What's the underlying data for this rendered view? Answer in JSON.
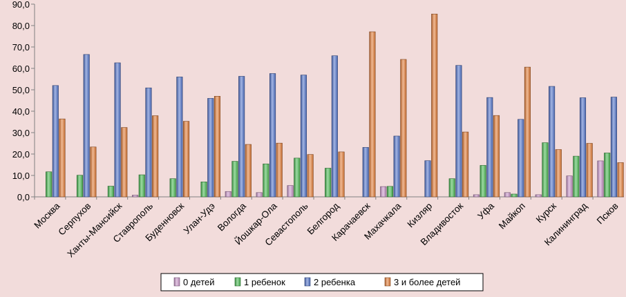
{
  "chart_data": {
    "type": "bar",
    "title": "",
    "xlabel": "",
    "ylabel": "",
    "ylim": [
      0,
      90
    ],
    "ytick_step": 10,
    "ytick_labels": [
      "0,0",
      "10,0",
      "20,0",
      "30,0",
      "40,0",
      "50,0",
      "60,0",
      "70,0",
      "80,0",
      "90,0"
    ],
    "grid": false,
    "legend_position": "bottom",
    "categories": [
      "Москва",
      "Серпухов",
      "Ханты-Мансийск",
      "Ставрополь",
      "Буденновск",
      "Улан-Удэ",
      "Вологда",
      "Йошкар-Ола",
      "Севастополь",
      "Белгород",
      "Карачаевск",
      "Махачкала",
      "Кизляр",
      "Владивосток",
      "Уфа",
      "Майкоп",
      "Курск",
      "Калининград",
      "Псков"
    ],
    "series": [
      {
        "name": "0 детей",
        "color": "#cc99cc",
        "values": [
          0,
          0,
          0,
          0.8,
          0,
          0,
          2.5,
          2.0,
          5.3,
          0,
          0,
          4.8,
          0,
          0,
          1.0,
          2.0,
          1.0,
          9.8,
          16.8
        ]
      },
      {
        "name": "1 ребенок",
        "color": "#4dbb55",
        "values": [
          11.7,
          10.1,
          5.0,
          10.3,
          8.5,
          7.0,
          16.6,
          15.4,
          18.1,
          13.4,
          0,
          4.9,
          0,
          8.5,
          14.7,
          1.3,
          25.3,
          19.0,
          20.5
        ]
      },
      {
        "name": "2 ребенка",
        "color": "#5577cc",
        "values": [
          52.0,
          66.5,
          62.6,
          50.9,
          56.0,
          46.0,
          56.3,
          57.6,
          56.9,
          65.9,
          23.1,
          28.4,
          16.9,
          61.4,
          46.4,
          36.2,
          51.6,
          46.3,
          46.6
        ]
      },
      {
        "name": "3 и более детей",
        "color": "#e47f3b",
        "values": [
          36.4,
          23.3,
          32.4,
          37.9,
          35.3,
          47.0,
          24.5,
          25.1,
          19.8,
          21.0,
          77.1,
          64.2,
          85.4,
          30.3,
          38.0,
          60.6,
          22.1,
          25.0,
          16.0
        ]
      }
    ]
  }
}
